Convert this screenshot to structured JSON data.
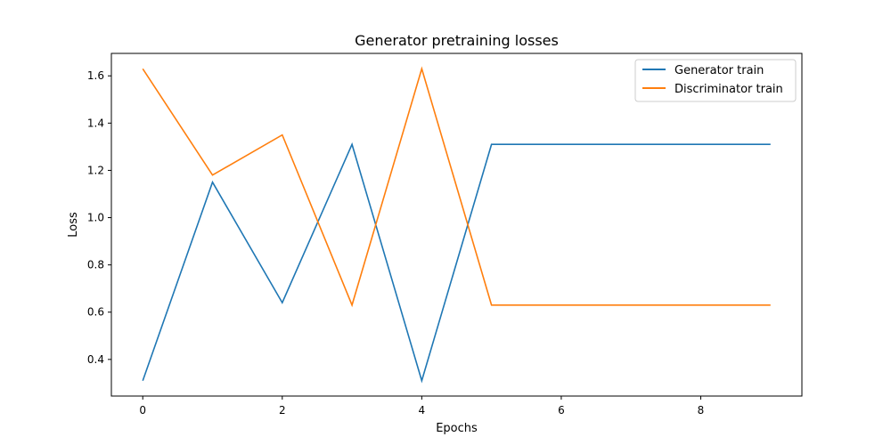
{
  "chart_data": {
    "type": "line",
    "title": "Generator pretraining losses",
    "xlabel": "Epochs",
    "ylabel": "Loss",
    "x": [
      0,
      1,
      2,
      3,
      4,
      5,
      6,
      7,
      8,
      9
    ],
    "xlim": [
      -0.45,
      9.45
    ],
    "ylim": [
      0.245,
      1.695
    ],
    "xticks": [
      0,
      2,
      4,
      6,
      8
    ],
    "yticks": [
      0.4,
      0.6,
      0.8,
      1.0,
      1.2,
      1.4,
      1.6
    ],
    "xtick_labels": [
      "0",
      "2",
      "4",
      "6",
      "8"
    ],
    "ytick_labels": [
      "0.4",
      "0.6",
      "0.8",
      "1.0",
      "1.2",
      "1.4",
      "1.6"
    ],
    "grid": false,
    "legend_position": "top-right",
    "series": [
      {
        "name": "Generator train",
        "color": "#1f77b4",
        "values": [
          0.31,
          1.15,
          0.64,
          1.31,
          0.31,
          1.31,
          1.31,
          1.31,
          1.31,
          1.31
        ]
      },
      {
        "name": "Discriminator train",
        "color": "#ff7f0e",
        "values": [
          1.63,
          1.18,
          1.35,
          0.63,
          1.63,
          0.63,
          0.63,
          0.63,
          0.63,
          0.63
        ]
      }
    ]
  }
}
